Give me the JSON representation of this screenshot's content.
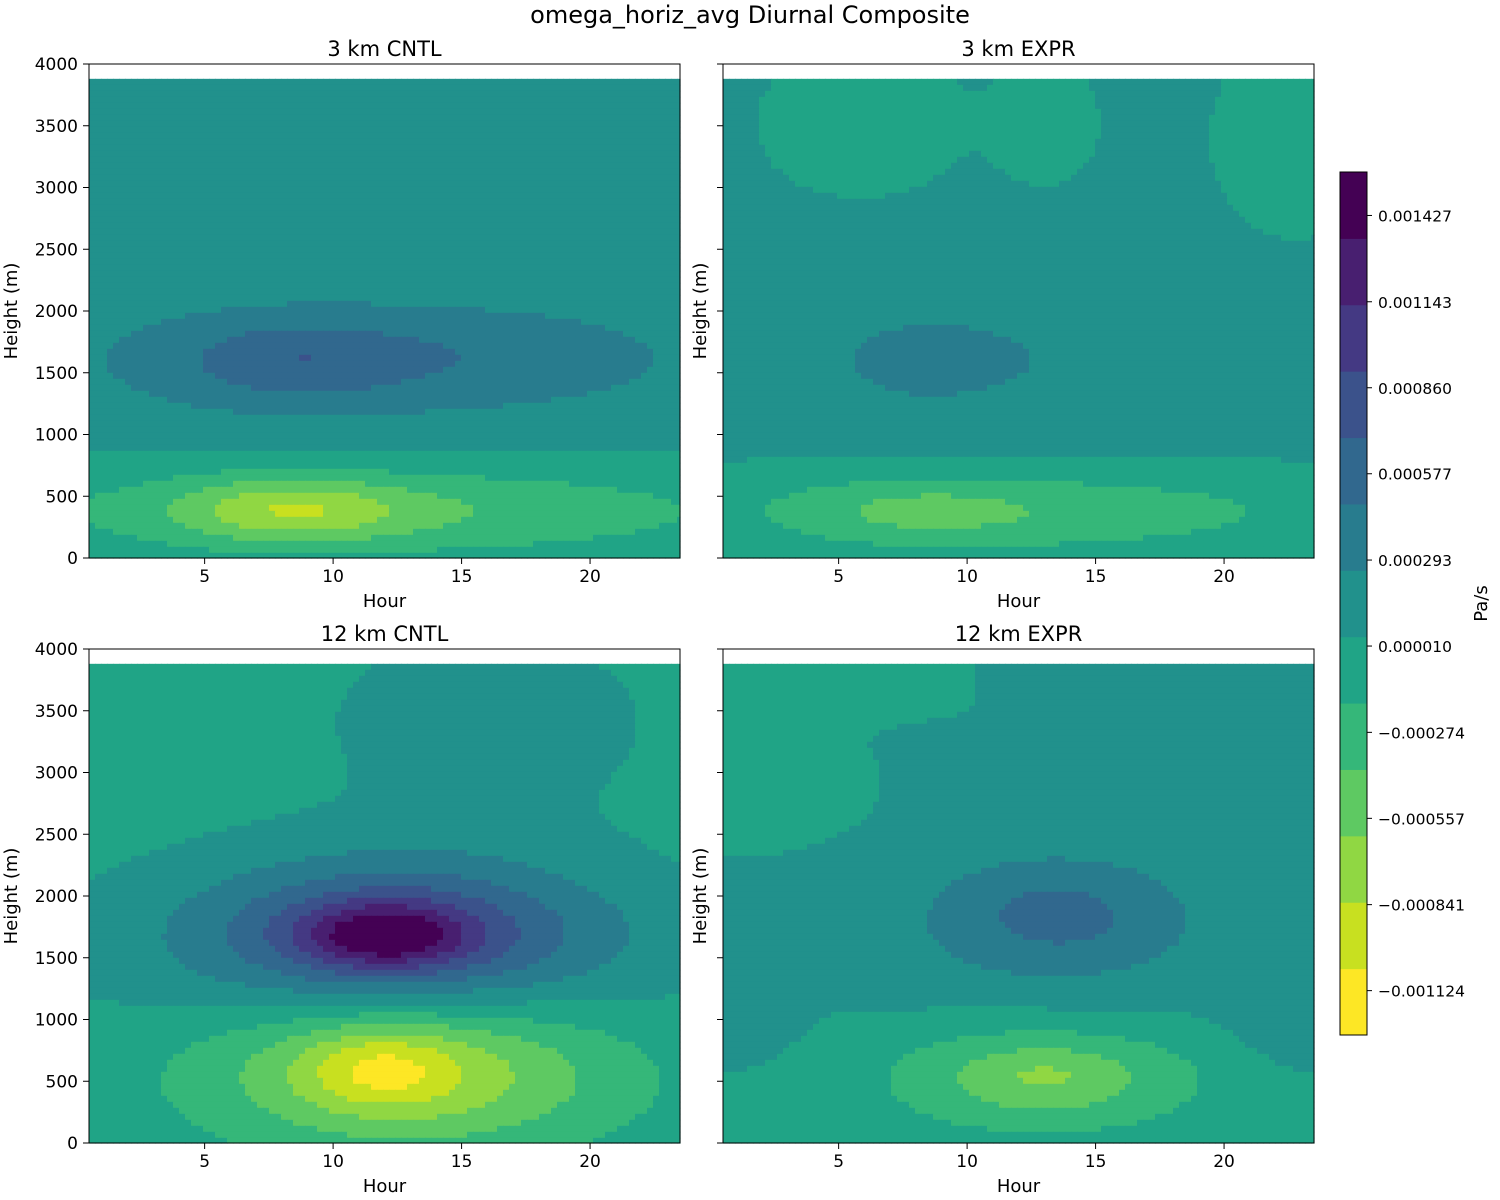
{
  "figure": {
    "title": "omega_horiz_avg Diurnal Composite"
  },
  "colors": {
    "viridis": [
      "#fde725",
      "#c8e020",
      "#90d743",
      "#5ec962",
      "#35b779",
      "#20a486",
      "#21918c",
      "#287c8e",
      "#31688e",
      "#3b528b",
      "#443983",
      "#481f70",
      "#440154"
    ]
  },
  "colorbar": {
    "label": "Pa/s",
    "range": [
      -0.00127,
      0.00157
    ],
    "ticks": [
      {
        "value": -0.001124,
        "label": "−0.001124"
      },
      {
        "value": -0.000841,
        "label": "−0.000841"
      },
      {
        "value": -0.000557,
        "label": "−0.000557"
      },
      {
        "value": -0.000274,
        "label": "−0.000274"
      },
      {
        "value": 1e-05,
        "label": "0.000010"
      },
      {
        "value": 0.000293,
        "label": "0.000293"
      },
      {
        "value": 0.000577,
        "label": "0.000577"
      },
      {
        "value": 0.00086,
        "label": "0.000860"
      },
      {
        "value": 0.001143,
        "label": "0.001143"
      },
      {
        "value": 0.001427,
        "label": "0.001427"
      }
    ]
  },
  "chart_data": [
    {
      "type": "heatmap",
      "title": "3 km CNTL",
      "xlabel": "Hour",
      "ylabel": "Height (m)",
      "xlim": [
        0.5,
        23.5
      ],
      "ylim": [
        0,
        4000
      ],
      "data_top": 3880,
      "xticks": [
        5,
        10,
        15,
        20
      ],
      "yticks": [
        0,
        500,
        1000,
        1500,
        2000,
        2500,
        3000,
        3500,
        4000
      ],
      "background": 5e-05,
      "features": [
        {
          "x": 12,
          "y": 1600,
          "sx": 11,
          "sy": 430,
          "amp": 0.0003
        },
        {
          "x": 8.5,
          "y": 1600,
          "sx": 3.2,
          "sy": 230,
          "amp": 0.00035
        },
        {
          "x": 16,
          "y": 1650,
          "sx": 3.5,
          "sy": 220,
          "amp": 0.0001
        },
        {
          "x": 13,
          "y": 3450,
          "sx": 3.0,
          "sy": 250,
          "amp": 0.00012
        },
        {
          "x": 12,
          "y": 380,
          "sx": 10,
          "sy": 260,
          "amp": -0.00045
        },
        {
          "x": 8.3,
          "y": 390,
          "sx": 3.0,
          "sy": 180,
          "amp": -0.0005
        }
      ]
    },
    {
      "type": "heatmap",
      "title": "3 km EXPR",
      "xlabel": "Hour",
      "ylabel": "Height (m)",
      "xlim": [
        0.5,
        23.5
      ],
      "ylim": [
        0,
        4000
      ],
      "data_top": 3880,
      "xticks": [
        5,
        10,
        15,
        20
      ],
      "yticks": [
        0,
        500,
        1000,
        1500,
        2000,
        2500,
        3000,
        3500,
        4000
      ],
      "background": 7e-05,
      "features": [
        {
          "x": 12,
          "y": 1600,
          "sx": 8,
          "sy": 600,
          "amp": 0.00018
        },
        {
          "x": 8,
          "y": 1600,
          "sx": 2.0,
          "sy": 200,
          "amp": 0.00012
        },
        {
          "x": 12,
          "y": 380,
          "sx": 9,
          "sy": 260,
          "amp": -0.00042
        },
        {
          "x": 8,
          "y": 380,
          "sx": 3.0,
          "sy": 170,
          "amp": -0.0002
        },
        {
          "x": 6,
          "y": 3500,
          "sx": 2.5,
          "sy": 400,
          "amp": -0.00012
        },
        {
          "x": 13,
          "y": 3500,
          "sx": 1.2,
          "sy": 300,
          "amp": -0.00015
        },
        {
          "x": 22.5,
          "y": 3300,
          "sx": 2.0,
          "sy": 600,
          "amp": -0.0001
        }
      ]
    },
    {
      "type": "heatmap",
      "title": "12 km CNTL",
      "xlabel": "Hour",
      "ylabel": "Height (m)",
      "xlim": [
        0.5,
        23.5
      ],
      "ylim": [
        0,
        4000
      ],
      "data_top": 3880,
      "xticks": [
        5,
        10,
        15,
        20
      ],
      "yticks": [
        0,
        500,
        1000,
        1500,
        2000,
        2500,
        3000,
        3500,
        4000
      ],
      "background": -3e-05,
      "features": [
        {
          "x": 12.5,
          "y": 1700,
          "sx": 5.5,
          "sy": 420,
          "amp": 0.0009
        },
        {
          "x": 12,
          "y": 1680,
          "sx": 2.2,
          "sy": 180,
          "amp": 0.0008
        },
        {
          "x": 13,
          "y": 580,
          "sx": 5.5,
          "sy": 430,
          "amp": -0.0008
        },
        {
          "x": 11.8,
          "y": 600,
          "sx": 2.0,
          "sy": 220,
          "amp": -0.0004
        },
        {
          "x": 16,
          "y": 3400,
          "sx": 5,
          "sy": 600,
          "amp": 0.00014
        },
        {
          "x": 12,
          "y": 1400,
          "sx": 12,
          "sy": 500,
          "amp": 0.0001
        }
      ]
    },
    {
      "type": "heatmap",
      "title": "12 km EXPR",
      "xlabel": "Hour",
      "ylabel": "Height (m)",
      "xlim": [
        0.5,
        23.5
      ],
      "ylim": [
        0,
        4000
      ],
      "data_top": 3880,
      "xticks": [
        5,
        10,
        15,
        20
      ],
      "yticks": [
        0,
        500,
        1000,
        1500,
        2000,
        2500,
        3000,
        3500,
        4000
      ],
      "background": 4e-05,
      "features": [
        {
          "x": 13.5,
          "y": 1800,
          "sx": 5,
          "sy": 480,
          "amp": 0.00035
        },
        {
          "x": 13.5,
          "y": 1850,
          "sx": 2.0,
          "sy": 200,
          "amp": 0.00022
        },
        {
          "x": 13,
          "y": 520,
          "sx": 4.5,
          "sy": 320,
          "amp": -0.00055
        },
        {
          "x": 13,
          "y": 550,
          "sx": 1.8,
          "sy": 150,
          "amp": -0.00015
        },
        {
          "x": 1,
          "y": 1000,
          "sx": 1.5,
          "sy": 200,
          "amp": 0.00015
        },
        {
          "x": 22.5,
          "y": 1100,
          "sx": 1.5,
          "sy": 300,
          "amp": 0.0002
        },
        {
          "x": 3,
          "y": 2700,
          "sx": 2.0,
          "sy": 200,
          "amp": -8e-05
        },
        {
          "x": 23,
          "y": 3900,
          "sx": 4,
          "sy": 300,
          "amp": 0.00012
        }
      ]
    }
  ]
}
